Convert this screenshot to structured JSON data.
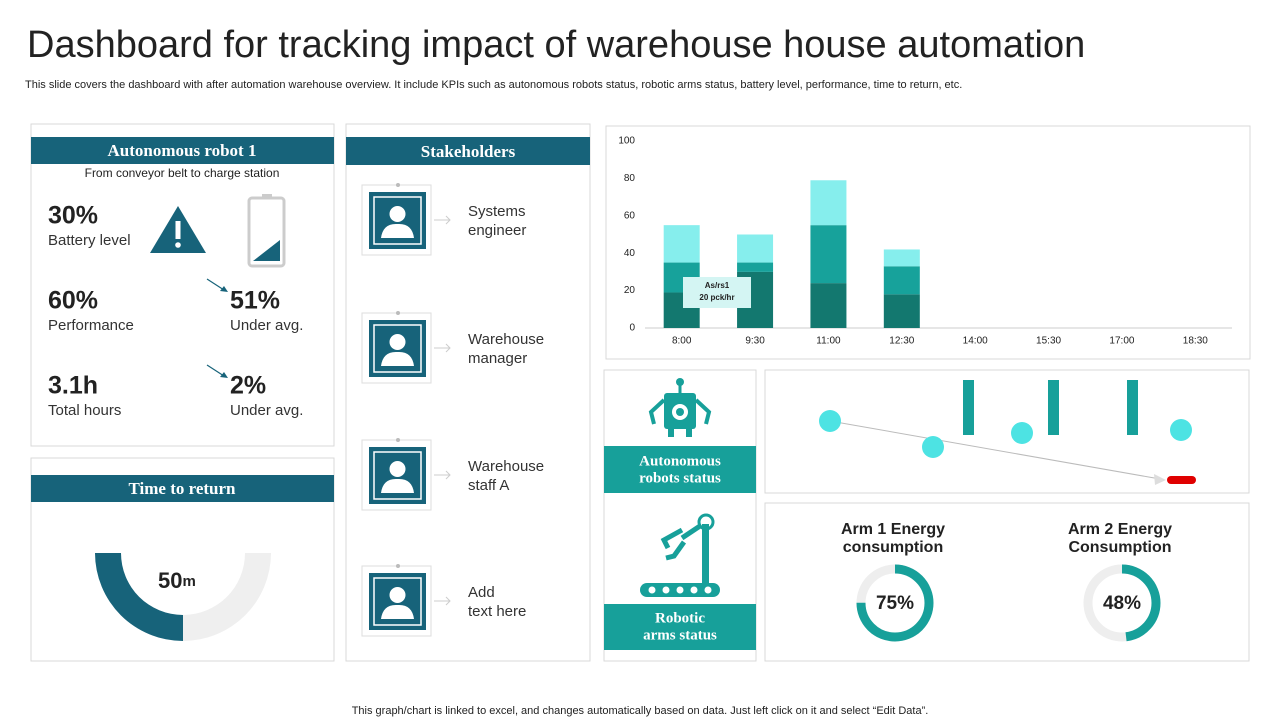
{
  "header": {
    "title": "Dashboard for tracking impact of warehouse house automation",
    "subtitle": "This slide covers the dashboard with after automation warehouse overview. It include KPIs such as autonomous robots status, robotic arms status, battery level, performance, time to return, etc."
  },
  "robot": {
    "title": "Autonomous robot 1",
    "subtitle": "From conveyor belt to charge station",
    "kpis": [
      {
        "value": "30%",
        "label": "Battery level"
      },
      {
        "value": "60%",
        "label": "Performance"
      },
      {
        "value": "51%",
        "label": "Under avg."
      },
      {
        "value": "3.1h",
        "label": "Total hours"
      },
      {
        "value": "2%",
        "label": "Under avg."
      }
    ]
  },
  "time_to_return": {
    "title": "Time to return",
    "value": "50",
    "unit": "m"
  },
  "stakeholders": {
    "title": "Stakeholders",
    "items": [
      [
        "Systems",
        "engineer"
      ],
      [
        "Warehouse",
        "manager"
      ],
      [
        "Warehouse",
        "staff A"
      ],
      [
        "Add",
        "text here"
      ]
    ]
  },
  "chart_data": {
    "type": "bar",
    "stacked": true,
    "categories": [
      "8:00",
      "9:30",
      "11:00",
      "12:30",
      "14:00",
      "15:30",
      "17:00",
      "18:30"
    ],
    "series": [
      {
        "color": "#13786f",
        "values": [
          19,
          30,
          24,
          18,
          null,
          null,
          null,
          null
        ]
      },
      {
        "color": "#17a29b",
        "values": [
          16,
          5,
          31,
          15,
          null,
          null,
          null,
          null
        ]
      },
      {
        "color": "#86eeed",
        "values": [
          20,
          15,
          24,
          9,
          null,
          null,
          null,
          null
        ]
      }
    ],
    "ylim": [
      0,
      100
    ],
    "yticks": [
      0,
      20,
      40,
      60,
      80,
      100
    ],
    "grid": false,
    "annotations": [
      "As/rs1",
      "20 pck/hr"
    ]
  },
  "status": {
    "robots": [
      "Autonomous",
      "robots status"
    ],
    "arms": [
      "Robotic",
      "arms status"
    ]
  },
  "energy": [
    {
      "title": [
        "Arm 1 Energy",
        "consumption"
      ],
      "value": 75,
      "value_label": "75%"
    },
    {
      "title": [
        "Arm 2 Energy",
        "Consumption"
      ],
      "value": 48,
      "value_label": "48%"
    }
  ],
  "footer": "This graph/chart is linked to excel, and changes automatically based on data. Just left click on it and select “Edit Data”."
}
